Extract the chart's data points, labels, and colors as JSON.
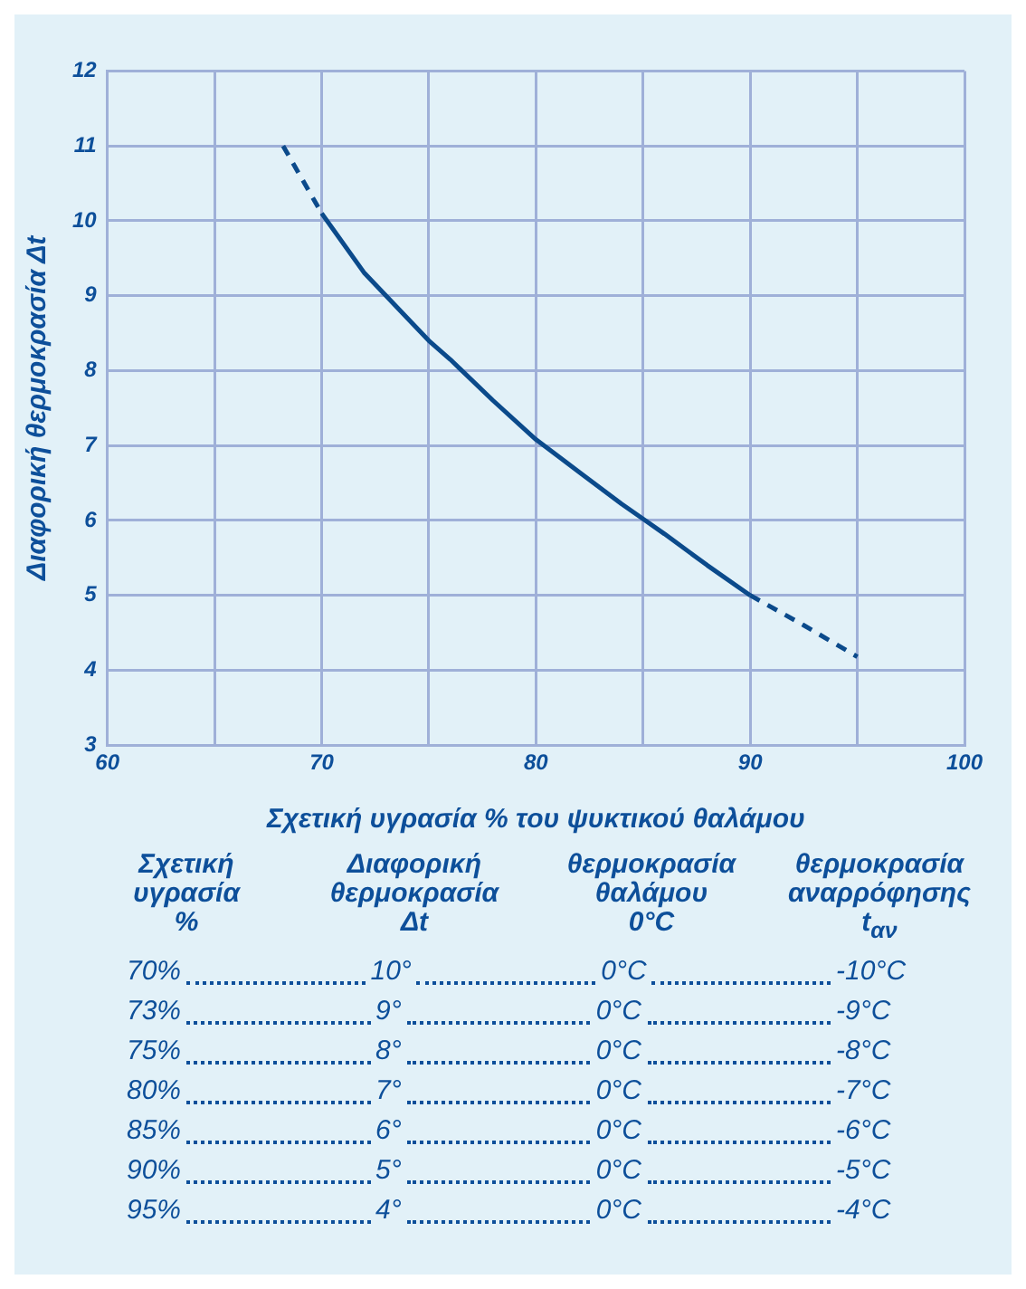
{
  "chart_data": {
    "type": "line",
    "xlabel": "Σχετική υγρασία % του ψυκτικού θαλάμου",
    "ylabel": "Διαφορική θερμοκρασία Δt",
    "xlim": [
      60,
      100
    ],
    "xticks": [
      60,
      {
        "value": 65,
        "label": null
      },
      70,
      {
        "value": 75,
        "label": null
      },
      80,
      {
        "value": 85,
        "label": null
      },
      90,
      {
        "value": 95,
        "label": null
      },
      100
    ],
    "ylim": [
      3,
      12
    ],
    "yticks": [
      3,
      4,
      5,
      6,
      7,
      8,
      9,
      10,
      11,
      12
    ],
    "grid": true,
    "series": [
      {
        "color": "#0b4a8b",
        "line_style": "dashed",
        "x": [
          68.2,
          70
        ],
        "values": [
          11,
          10.1
        ]
      },
      {
        "color": "#0b4a8b",
        "line_style": "solid",
        "x": [
          70,
          72,
          74,
          75,
          76,
          78,
          80,
          82,
          84,
          85,
          86,
          88,
          90
        ],
        "values": [
          10.1,
          9.3,
          8.7,
          8.4,
          8.15,
          7.6,
          7.08,
          6.65,
          6.22,
          6.02,
          5.82,
          5.4,
          5.0
        ]
      },
      {
        "color": "#0b4a8b",
        "line_style": "dashed",
        "x": [
          90,
          92.5,
          95
        ],
        "values": [
          5.0,
          4.6,
          4.18
        ]
      }
    ],
    "annotations": [
      "Σχετική\nυγρασία\n%",
      "Διαφορική\nθερμοκρασία\nΔt",
      "θερμοκρασία\nθαλάμου\n0°C",
      "θερμοκρασία\nαναρρόφησης\nt$_{αν}$",
      "70%",
      "10°",
      "0°C",
      "-10°C",
      "73%",
      "9°",
      "0°C",
      "-9°C",
      "75%",
      "8°",
      "0°C",
      "-8°C",
      "80%",
      "7°",
      "0°C",
      "-7°C",
      "85%",
      "6°",
      "0°C",
      "-6°C",
      "90%",
      "5°",
      "0°C",
      "-5°C",
      "95%",
      "4°",
      "0°C",
      "-4°C"
    ]
  }
}
